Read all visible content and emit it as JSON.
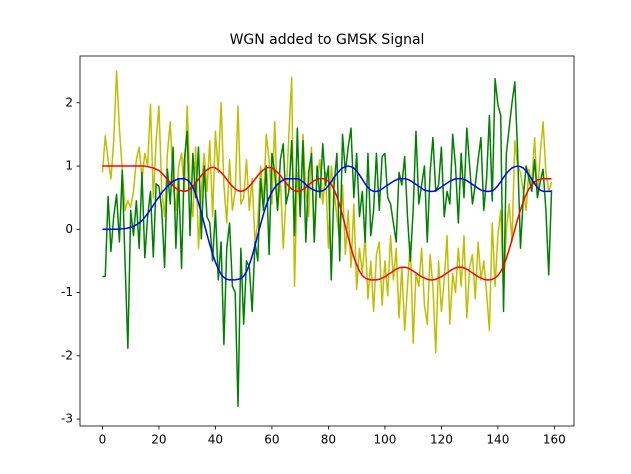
{
  "chart_data": {
    "type": "line",
    "title": "WGN added to GMSK Signal",
    "x": [
      0,
      1,
      2,
      3,
      4,
      5,
      6,
      7,
      8,
      9,
      10,
      11,
      12,
      13,
      14,
      15,
      16,
      17,
      18,
      19,
      20,
      21,
      22,
      23,
      24,
      25,
      26,
      27,
      28,
      29,
      30,
      31,
      32,
      33,
      34,
      35,
      36,
      37,
      38,
      39,
      40,
      41,
      42,
      43,
      44,
      45,
      46,
      47,
      48,
      49,
      50,
      51,
      52,
      53,
      54,
      55,
      56,
      57,
      58,
      59,
      60,
      61,
      62,
      63,
      64,
      65,
      66,
      67,
      68,
      69,
      70,
      71,
      72,
      73,
      74,
      75,
      76,
      77,
      78,
      79,
      80,
      81,
      82,
      83,
      84,
      85,
      86,
      87,
      88,
      89,
      90,
      91,
      92,
      93,
      94,
      95,
      96,
      97,
      98,
      99,
      100,
      101,
      102,
      103,
      104,
      105,
      106,
      107,
      108,
      109,
      110,
      111,
      112,
      113,
      114,
      115,
      116,
      117,
      118,
      119,
      120,
      121,
      122,
      123,
      124,
      125,
      126,
      127,
      128,
      129,
      130,
      131,
      132,
      133,
      134,
      135,
      136,
      137,
      138,
      139,
      140,
      141,
      142,
      143,
      144,
      145,
      146,
      147,
      148,
      149,
      150,
      151,
      152,
      153,
      154,
      155,
      156,
      157,
      158,
      159
    ],
    "series": [
      {
        "color": "#bfbf00",
        "values": [
          0.9,
          1.48,
          1.1,
          0.8,
          1.4,
          2.5,
          1.6,
          0.95,
          0.3,
          0.45,
          0.35,
          0.6,
          1.1,
          1.3,
          0.8,
          1.2,
          1.0,
          1.98,
          0.5,
          1.4,
          1.95,
          0.6,
          0.2,
          1.2,
          1.7,
          0.7,
          0.3,
          1.0,
          1.2,
          0.6,
          1.95,
          0.7,
          0.2,
          1.3,
          -0.3,
          0.6,
          1.2,
          0.6,
          1.4,
          0.2,
          1.55,
          0.9,
          2.0,
          0.7,
          0.1,
          1.1,
          0.3,
          0.6,
          1.95,
          0.4,
          0.5,
          1.1,
          0.3,
          0.8,
          -0.2,
          0.1,
          1.0,
          0.4,
          1.5,
          1.1,
          0.4,
          1.7,
          0.3,
          0.8,
          -0.3,
          0.5,
          1.5,
          2.4,
          -0.9,
          0.9,
          0.3,
          1.5,
          0.6,
          0.2,
          1.3,
          -0.2,
          0.8,
          1.1,
          0.4,
          0.9,
          -0.3,
          1.0,
          0.6,
          0.2,
          -0.2,
          0.7,
          -0.4,
          0.3,
          -0.6,
          0.4,
          -0.95,
          -0.3,
          -0.7,
          -0.1,
          -1.1,
          -0.5,
          -1.3,
          -0.4,
          -0.2,
          -1.2,
          -0.5,
          -1.05,
          -0.1,
          -0.8,
          -0.3,
          -1.4,
          -0.6,
          -1.6,
          -0.9,
          -0.2,
          -1.8,
          -0.7,
          -0.9,
          -0.3,
          -1.2,
          -1.5,
          -0.4,
          -0.9,
          -1.95,
          -0.5,
          -1.3,
          -0.8,
          -0.1,
          -1.5,
          -0.7,
          -1.0,
          -0.3,
          -0.9,
          -0.1,
          -1.4,
          -0.6,
          -0.4,
          -1.1,
          -0.2,
          -0.8,
          -0.5,
          -1.0,
          -1.6,
          0.1,
          -0.9,
          -0.1,
          0.3,
          -1.0,
          0.0,
          0.4,
          -0.2,
          1.4,
          1.0,
          0.9,
          0.6,
          0.3,
          0.95,
          0.7,
          1.45,
          0.5,
          1.2,
          1.7,
          0.9,
          0.6,
          0.75
        ]
      },
      {
        "color": "#008000",
        "values": [
          -0.75,
          -0.74,
          0.52,
          -0.35,
          0.21,
          0.55,
          -0.2,
          0.93,
          -0.52,
          -1.88,
          0.3,
          -0.1,
          0.45,
          -0.3,
          0.9,
          -0.45,
          0.2,
          0.6,
          -0.44,
          0.72,
          0.68,
          0.3,
          -0.6,
          0.95,
          0.4,
          1.3,
          -0.3,
          0.8,
          -0.62,
          1.1,
          1.55,
          -0.1,
          1.2,
          0.5,
          1.3,
          -0.15,
          1.0,
          0.2,
          0.1,
          -0.5,
          0.3,
          -0.8,
          -0.2,
          -1.82,
          -0.3,
          0.1,
          -0.9,
          -1.0,
          -2.8,
          -0.3,
          -1.5,
          -0.5,
          -0.6,
          -1.3,
          -0.2,
          -0.5,
          0.8,
          0.3,
          1.0,
          -0.4,
          1.2,
          0.9,
          0.3,
          1.1,
          1.35,
          0.4,
          0.6,
          1.4,
          -0.1,
          1.6,
          0.2,
          1.4,
          -0.2,
          0.9,
          1.2,
          -0.2,
          1.0,
          0.5,
          1.35,
          0.7,
          1.0,
          -0.8,
          0.7,
          1.2,
          -0.5,
          1.5,
          0.9,
          1.3,
          1.6,
          0.5,
          1.2,
          0.2,
          0.6,
          -0.2,
          1.2,
          -0.1,
          0.3,
          1.2,
          0.3,
          1.15,
          1.2,
          0.5,
          0.4,
          0.1,
          -0.2,
          0.9,
          0.7,
          1.15,
          0.2,
          -0.5,
          0.3,
          1.55,
          0.4,
          0.7,
          1.0,
          -0.2,
          0.9,
          1.45,
          0.6,
          0.7,
          1.3,
          0.2,
          0.6,
          0.4,
          1.5,
          1.0,
          0.1,
          1.2,
          0.5,
          1.6,
          1.0,
          0.4,
          0.7,
          1.1,
          1.45,
          0.3,
          0.8,
          1.8,
          0.45,
          2.38,
          1.97,
          1.8,
          -1.3,
          1.2,
          1.6,
          2.0,
          2.33,
          1.2,
          -0.3,
          0.5,
          1.0,
          0.8,
          0.6,
          1.1,
          0.5,
          0.75,
          0.95,
          0.3,
          -0.72,
          0.62
        ]
      },
      {
        "color": "#ff0000",
        "values": [
          1,
          1,
          1,
          1,
          1,
          1,
          1,
          1,
          1,
          1,
          1,
          1,
          1,
          1,
          1,
          1,
          0.99,
          0.98,
          0.97,
          0.95,
          0.93,
          0.89,
          0.84,
          0.79,
          0.74,
          0.69,
          0.65,
          0.62,
          0.61,
          0.6,
          0.61,
          0.64,
          0.68,
          0.73,
          0.79,
          0.85,
          0.9,
          0.94,
          0.97,
          0.98,
          0.97,
          0.94,
          0.9,
          0.85,
          0.79,
          0.73,
          0.68,
          0.64,
          0.61,
          0.6,
          0.61,
          0.64,
          0.68,
          0.73,
          0.79,
          0.85,
          0.9,
          0.94,
          0.97,
          0.98,
          0.97,
          0.94,
          0.9,
          0.85,
          0.79,
          0.73,
          0.68,
          0.64,
          0.61,
          0.6,
          0.61,
          0.63,
          0.66,
          0.7,
          0.74,
          0.77,
          0.79,
          0.8,
          0.8,
          0.79,
          0.76,
          0.71,
          0.63,
          0.52,
          0.38,
          0.22,
          0.05,
          -0.12,
          -0.29,
          -0.44,
          -0.56,
          -0.66,
          -0.73,
          -0.77,
          -0.79,
          -0.8,
          -0.8,
          -0.8,
          -0.79,
          -0.77,
          -0.75,
          -0.72,
          -0.69,
          -0.66,
          -0.63,
          -0.61,
          -0.6,
          -0.6,
          -0.61,
          -0.63,
          -0.66,
          -0.69,
          -0.72,
          -0.75,
          -0.77,
          -0.79,
          -0.8,
          -0.8,
          -0.79,
          -0.77,
          -0.75,
          -0.72,
          -0.69,
          -0.66,
          -0.63,
          -0.61,
          -0.6,
          -0.6,
          -0.61,
          -0.63,
          -0.66,
          -0.69,
          -0.72,
          -0.75,
          -0.77,
          -0.79,
          -0.8,
          -0.8,
          -0.79,
          -0.77,
          -0.73,
          -0.67,
          -0.58,
          -0.46,
          -0.32,
          -0.16,
          0.0,
          0.16,
          0.31,
          0.44,
          0.55,
          0.64,
          0.7,
          0.75,
          0.78,
          0.79,
          0.8,
          0.8,
          0.8,
          0.8
        ]
      },
      {
        "color": "#0000ff",
        "values": [
          0,
          0,
          0,
          0,
          0,
          0,
          0,
          0.01,
          0.01,
          0.02,
          0.03,
          0.05,
          0.07,
          0.1,
          0.14,
          0.19,
          0.25,
          0.31,
          0.38,
          0.45,
          0.51,
          0.58,
          0.63,
          0.68,
          0.72,
          0.76,
          0.78,
          0.8,
          0.8,
          0.8,
          0.78,
          0.74,
          0.67,
          0.56,
          0.42,
          0.26,
          0.09,
          -0.08,
          -0.24,
          -0.39,
          -0.52,
          -0.63,
          -0.71,
          -0.76,
          -0.79,
          -0.8,
          -0.8,
          -0.8,
          -0.79,
          -0.78,
          -0.74,
          -0.67,
          -0.56,
          -0.42,
          -0.26,
          -0.09,
          0.08,
          0.24,
          0.38,
          0.5,
          0.59,
          0.66,
          0.71,
          0.75,
          0.78,
          0.8,
          0.8,
          0.8,
          0.8,
          0.8,
          0.78,
          0.75,
          0.71,
          0.67,
          0.64,
          0.62,
          0.6,
          0.6,
          0.61,
          0.64,
          0.69,
          0.75,
          0.82,
          0.88,
          0.93,
          0.97,
          0.99,
          1.0,
          0.99,
          0.97,
          0.92,
          0.86,
          0.79,
          0.72,
          0.66,
          0.62,
          0.6,
          0.6,
          0.61,
          0.64,
          0.67,
          0.7,
          0.73,
          0.76,
          0.78,
          0.8,
          0.8,
          0.8,
          0.79,
          0.77,
          0.74,
          0.71,
          0.68,
          0.65,
          0.62,
          0.61,
          0.6,
          0.6,
          0.61,
          0.64,
          0.67,
          0.7,
          0.73,
          0.76,
          0.78,
          0.8,
          0.8,
          0.8,
          0.79,
          0.77,
          0.74,
          0.71,
          0.68,
          0.65,
          0.62,
          0.61,
          0.6,
          0.6,
          0.61,
          0.64,
          0.69,
          0.75,
          0.82,
          0.88,
          0.93,
          0.97,
          0.99,
          1.0,
          0.99,
          0.97,
          0.92,
          0.86,
          0.79,
          0.72,
          0.66,
          0.62,
          0.6,
          0.6,
          0.6,
          0.6
        ]
      }
    ],
    "xlim": [
      -7.95,
      166.95
    ],
    "xticks": [
      0,
      20,
      40,
      60,
      80,
      100,
      120,
      140,
      160
    ],
    "ylim": [
      -3.11,
      2.74
    ],
    "yticks": [
      -3,
      -2,
      -1,
      0,
      1,
      2
    ],
    "grid": false
  }
}
